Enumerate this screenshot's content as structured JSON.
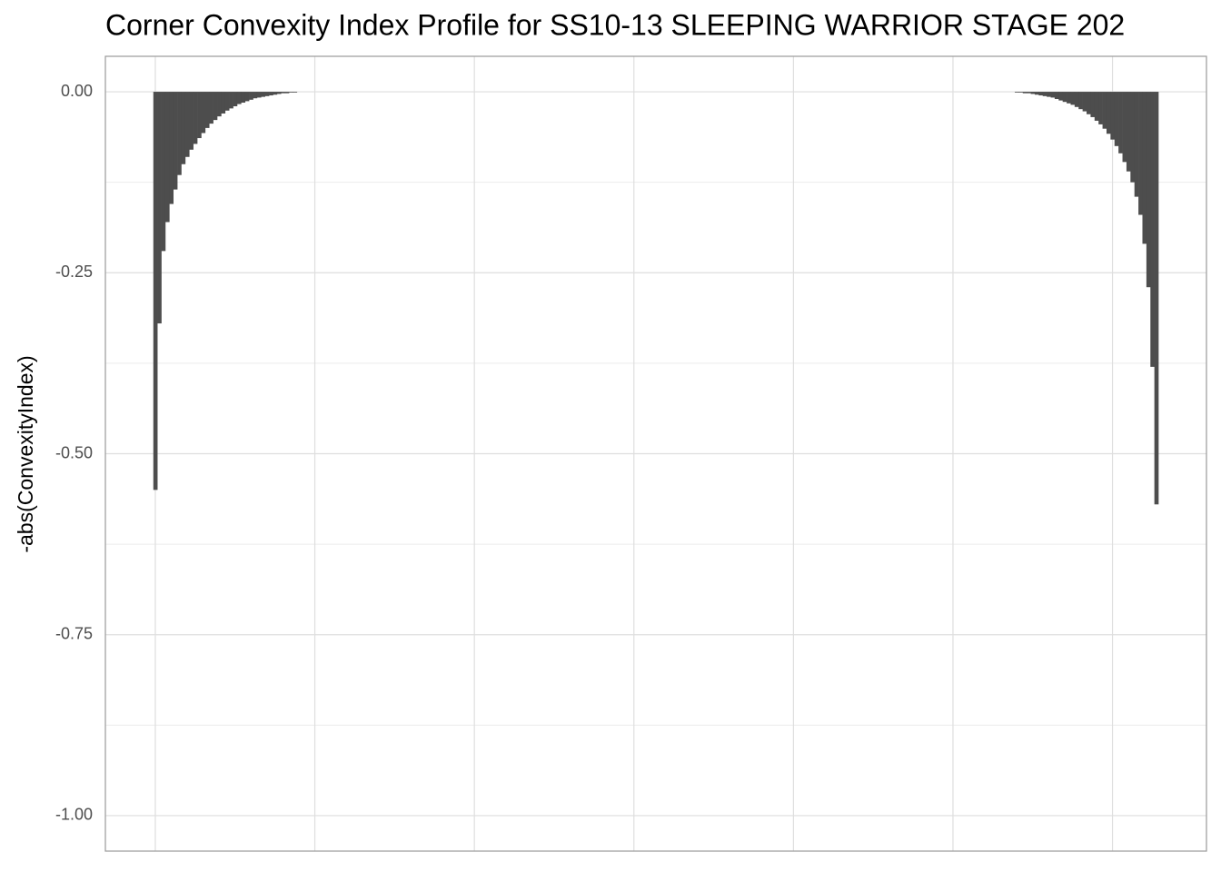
{
  "chart_data": {
    "type": "bar",
    "title": "Corner Convexity Index Profile for SS10-13 SLEEPING WARRIOR STAGE 202",
    "y_label": "-abs(ConvexityIndex)",
    "x": [
      0,
      0.025,
      0.05,
      0.075,
      0.1,
      0.125,
      0.15,
      0.175,
      0.2,
      0.225,
      0.25,
      0.275,
      0.3,
      0.325,
      0.35,
      0.375,
      0.4,
      0.425,
      0.45,
      0.475,
      0.5,
      0.525,
      0.55,
      0.575,
      0.6,
      0.625,
      0.65,
      0.675,
      0.7,
      0.725,
      0.75,
      0.775,
      0.8,
      0.825,
      0.85,
      0.875,
      0.9,
      5.375,
      5.4,
      5.425,
      5.45,
      5.475,
      5.5,
      5.525,
      5.55,
      5.575,
      5.6,
      5.625,
      5.65,
      5.675,
      5.7,
      5.725,
      5.75,
      5.775,
      5.8,
      5.825,
      5.85,
      5.875,
      5.9,
      5.925,
      5.95,
      5.975,
      6,
      6.025,
      6.05,
      6.075,
      6.1,
      6.125,
      6.15,
      6.175,
      6.2,
      6.225,
      6.25,
      6.275
    ],
    "values": [
      -0.55,
      -0.32,
      -0.22,
      -0.18,
      -0.155,
      -0.135,
      -0.115,
      -0.1,
      -0.09,
      -0.08,
      -0.072,
      -0.064,
      -0.057,
      -0.05,
      -0.044,
      -0.039,
      -0.034,
      -0.03,
      -0.026,
      -0.023,
      -0.02,
      -0.017,
      -0.015,
      -0.013,
      -0.011,
      -0.009,
      -0.008,
      -0.007,
      -0.006,
      -0.005,
      -0.004,
      -0.003,
      -0.002,
      -0.002,
      -0.001,
      -0.001,
      0,
      0,
      -0.001,
      -0.001,
      -0.002,
      -0.002,
      -0.003,
      -0.004,
      -0.005,
      -0.006,
      -0.007,
      -0.008,
      -0.01,
      -0.012,
      -0.014,
      -0.016,
      -0.018,
      -0.021,
      -0.024,
      -0.027,
      -0.031,
      -0.035,
      -0.04,
      -0.045,
      -0.051,
      -0.058,
      -0.066,
      -0.075,
      -0.085,
      -0.097,
      -0.11,
      -0.125,
      -0.145,
      -0.17,
      -0.21,
      -0.27,
      -0.38,
      -0.57
    ],
    "bar_width": 0.025,
    "color": "#4d4d4d",
    "xlim": [
      -0.313,
      6.589
    ],
    "xticks": [
      0,
      1,
      2,
      3,
      4,
      5,
      6
    ],
    "ylim": [
      -1.049,
      0.049
    ],
    "yticks": [
      {
        "value": 0,
        "label": "0.00"
      },
      {
        "value": -0.25,
        "label": "-0.25"
      },
      {
        "value": -0.5,
        "label": "-0.50"
      },
      {
        "value": -0.75,
        "label": "-0.75"
      },
      {
        "value": -1,
        "label": "-1.00"
      }
    ],
    "y_minor_ticks": [
      -0.125,
      -0.375,
      -0.625,
      -0.875
    ],
    "grid": true
  }
}
